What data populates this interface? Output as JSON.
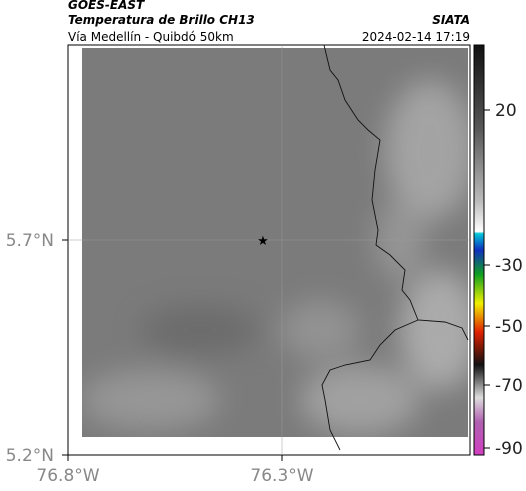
{
  "header": {
    "source": "GOES-EAST",
    "title": "Temperatura de Brillo CH13",
    "brand": "SIATA",
    "route": "Vía Medellín - Quibdó 50km",
    "timestamp": "2024-02-14 17:19"
  },
  "map": {
    "lat_ticks": [
      "5.7°N",
      "5.2°N"
    ],
    "lon_ticks": [
      "76.8°W",
      "76.3°W"
    ]
  },
  "colorbar": {
    "ticks": [
      "20",
      "-30",
      "-50",
      "-70",
      "-90"
    ]
  }
}
